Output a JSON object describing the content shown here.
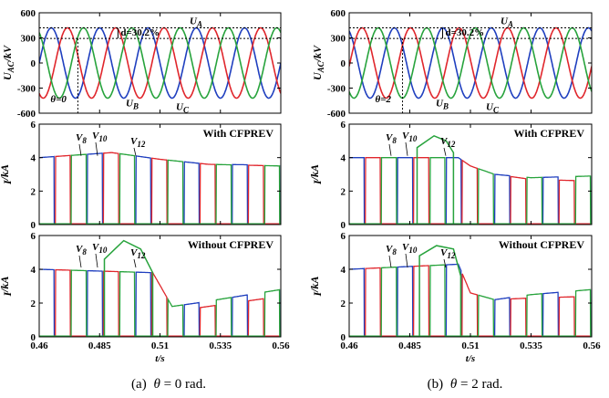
{
  "figure": {
    "captions": [
      {
        "prefix": "(a)",
        "symbol": "θ",
        "rest": " = 0 rad."
      },
      {
        "prefix": "(b)",
        "symbol": "θ",
        "rest": " = 2 rad."
      }
    ]
  },
  "colors": {
    "phase_a": "#1f3fbf",
    "phase_b": "#e0262c",
    "phase_c": "#27a33c",
    "frame": "#000000"
  },
  "chart_data": [
    {
      "id": "a-voltage",
      "type": "line",
      "ylabel": {
        "main": "U",
        "sub": "AC",
        "unit": "/kV"
      },
      "xlim": [
        0.46,
        0.56
      ],
      "ylim": [
        -600,
        600
      ],
      "yticks": [
        "600",
        "300",
        "0",
        "-300",
        "-600"
      ],
      "frequency_hz": 50,
      "amplitude_kv": 420,
      "theta_rad": 0,
      "series": [
        {
          "name": "U_A",
          "phase_deg": 0
        },
        {
          "name": "U_B",
          "phase_deg": -120
        },
        {
          "name": "U_C",
          "phase_deg": 120
        }
      ],
      "annotations": {
        "dip": "d=30.2%",
        "theta": "θ=0",
        "ua": "U",
        "ua_sub": "A",
        "ub": "U",
        "ub_sub": "B",
        "uc": "U",
        "uc_sub": "C"
      },
      "reference_levels_kv": [
        420,
        293
      ],
      "fault_time_s": 0.476
    },
    {
      "id": "b-voltage",
      "type": "line",
      "ylabel": {
        "main": "U",
        "sub": "AC",
        "unit": "/kV"
      },
      "xlim": [
        0.46,
        0.56
      ],
      "ylim": [
        -600,
        600
      ],
      "yticks": [
        "600",
        "300",
        "0",
        "-300",
        "-600"
      ],
      "frequency_hz": 50,
      "amplitude_kv": 420,
      "theta_rad": 2,
      "series": [
        {
          "name": "U_A",
          "phase_deg": 0
        },
        {
          "name": "U_B",
          "phase_deg": -120
        },
        {
          "name": "U_C",
          "phase_deg": 120
        }
      ],
      "annotations": {
        "dip": "d=30.2%",
        "theta": "θ=2",
        "ua": "U",
        "ua_sub": "A",
        "ub": "U",
        "ub_sub": "B",
        "uc": "U",
        "uc_sub": "C"
      },
      "reference_levels_kv": [
        420,
        293
      ],
      "fault_time_s": 0.482
    },
    {
      "id": "a-with",
      "type": "line",
      "title": "With CFPREV",
      "ylabel": {
        "main": "I",
        "unit": "/kA"
      },
      "xlim": [
        0.46,
        0.56
      ],
      "ylim": [
        0,
        6
      ],
      "yticks": [
        "6",
        "4",
        "2",
        "0"
      ],
      "labels": [
        {
          "main": "V",
          "sub": "8"
        },
        {
          "main": "V",
          "sub": "10"
        },
        {
          "main": "V",
          "sub": "12"
        }
      ],
      "base_level_ka": 4.0,
      "series": [
        {
          "name": "blue",
          "points": [
            [
              0.46,
              4.0
            ],
            [
              0.49,
              4.3
            ],
            [
              0.5,
              4.1
            ],
            [
              0.51,
              3.9
            ],
            [
              0.53,
              3.6
            ],
            [
              0.56,
              3.55
            ]
          ]
        },
        {
          "name": "red",
          "points": [
            [
              0.46,
              4.0
            ],
            [
              0.49,
              4.3
            ],
            [
              0.5,
              4.1
            ],
            [
              0.51,
              3.9
            ],
            [
              0.53,
              3.6
            ],
            [
              0.56,
              3.5
            ]
          ]
        },
        {
          "name": "green",
          "points": [
            [
              0.46,
              4.0
            ],
            [
              0.49,
              4.3
            ],
            [
              0.5,
              4.1
            ],
            [
              0.51,
              3.9
            ],
            [
              0.53,
              3.6
            ],
            [
              0.56,
              3.5
            ]
          ]
        }
      ]
    },
    {
      "id": "b-with",
      "type": "line",
      "title": "With CFPREV",
      "ylabel": {
        "main": "I",
        "unit": "/kA"
      },
      "xlim": [
        0.46,
        0.56
      ],
      "ylim": [
        0,
        6
      ],
      "yticks": [
        "6",
        "4",
        "2",
        "0"
      ],
      "labels": [
        {
          "main": "V",
          "sub": "8"
        },
        {
          "main": "V",
          "sub": "10"
        },
        {
          "main": "V",
          "sub": "12"
        }
      ],
      "base_level_ka": 4.0,
      "green_pulse": [
        [
          0.488,
          4.6
        ],
        [
          0.495,
          5.3
        ],
        [
          0.5,
          5.0
        ],
        [
          0.503,
          4.3
        ]
      ],
      "series": [
        {
          "name": "blue",
          "points": [
            [
              0.46,
              4.0
            ],
            [
              0.505,
              4.0
            ],
            [
              0.51,
              3.5
            ],
            [
              0.52,
              3.0
            ],
            [
              0.535,
              2.8
            ],
            [
              0.56,
              2.9
            ]
          ]
        },
        {
          "name": "red",
          "points": [
            [
              0.46,
              4.0
            ],
            [
              0.505,
              4.0
            ],
            [
              0.51,
              3.5
            ],
            [
              0.52,
              3.0
            ],
            [
              0.535,
              2.7
            ],
            [
              0.56,
              2.6
            ]
          ]
        },
        {
          "name": "green",
          "points": [
            [
              0.46,
              4.0
            ],
            [
              0.505,
              4.0
            ],
            [
              0.51,
              3.5
            ],
            [
              0.52,
              3.0
            ],
            [
              0.535,
              2.8
            ],
            [
              0.56,
              2.9
            ]
          ]
        }
      ]
    },
    {
      "id": "a-without",
      "type": "line",
      "title": "Without CFPREV",
      "ylabel": {
        "main": "I",
        "unit": "/kA"
      },
      "xlim": [
        0.46,
        0.56
      ],
      "ylim": [
        0,
        6
      ],
      "yticks": [
        "6",
        "4",
        "2",
        "0"
      ],
      "xticks": [
        "0.46",
        "0.485",
        "0.51",
        "0.535",
        "0.56"
      ],
      "xlabel": "t/s",
      "labels": [
        {
          "main": "V",
          "sub": "8"
        },
        {
          "main": "V",
          "sub": "10"
        },
        {
          "main": "V",
          "sub": "12"
        }
      ],
      "base_level_ka": 4.0,
      "green_pulse": [
        [
          0.487,
          4.6
        ],
        [
          0.495,
          5.7
        ],
        [
          0.502,
          5.2
        ],
        [
          0.507,
          3.8
        ]
      ],
      "series": [
        {
          "name": "blue",
          "points": [
            [
              0.46,
              4.0
            ],
            [
              0.507,
              3.8
            ],
            [
              0.515,
              1.8
            ],
            [
              0.525,
              2.0
            ],
            [
              0.56,
              2.8
            ]
          ]
        },
        {
          "name": "red",
          "points": [
            [
              0.46,
              4.0
            ],
            [
              0.507,
              3.8
            ],
            [
              0.515,
              1.8
            ],
            [
              0.525,
              1.7
            ],
            [
              0.56,
              2.4
            ]
          ]
        },
        {
          "name": "green",
          "points": [
            [
              0.46,
              4.0
            ],
            [
              0.507,
              3.8
            ],
            [
              0.515,
              1.8
            ],
            [
              0.525,
              2.0
            ],
            [
              0.56,
              2.8
            ]
          ]
        }
      ]
    },
    {
      "id": "b-without",
      "type": "line",
      "title": "Without CFPREV",
      "ylabel": {
        "main": "I",
        "unit": "/kA"
      },
      "xlim": [
        0.46,
        0.56
      ],
      "ylim": [
        0,
        6
      ],
      "yticks": [
        "6",
        "4",
        "2",
        "0"
      ],
      "xticks": [
        "0.46",
        "0.485",
        "0.51",
        "0.535",
        "0.56"
      ],
      "xlabel": "t/s",
      "labels": [
        {
          "main": "V",
          "sub": "8"
        },
        {
          "main": "V",
          "sub": "10"
        },
        {
          "main": "V",
          "sub": "12"
        }
      ],
      "base_level_ka": 4.0,
      "green_pulse": [
        [
          0.489,
          4.8
        ],
        [
          0.496,
          5.4
        ],
        [
          0.503,
          5.2
        ],
        [
          0.506,
          3.6
        ]
      ],
      "series": [
        {
          "name": "blue",
          "points": [
            [
              0.46,
              4.0
            ],
            [
              0.505,
              4.3
            ],
            [
              0.51,
              2.6
            ],
            [
              0.52,
              2.2
            ],
            [
              0.535,
              2.5
            ],
            [
              0.56,
              2.8
            ]
          ]
        },
        {
          "name": "red",
          "points": [
            [
              0.46,
              4.0
            ],
            [
              0.505,
              4.3
            ],
            [
              0.51,
              2.6
            ],
            [
              0.52,
              2.2
            ],
            [
              0.535,
              2.3
            ],
            [
              0.56,
              2.4
            ]
          ]
        },
        {
          "name": "green",
          "points": [
            [
              0.46,
              4.0
            ],
            [
              0.505,
              4.3
            ],
            [
              0.51,
              2.6
            ],
            [
              0.52,
              2.2
            ],
            [
              0.535,
              2.5
            ],
            [
              0.56,
              2.8
            ]
          ]
        }
      ]
    }
  ]
}
